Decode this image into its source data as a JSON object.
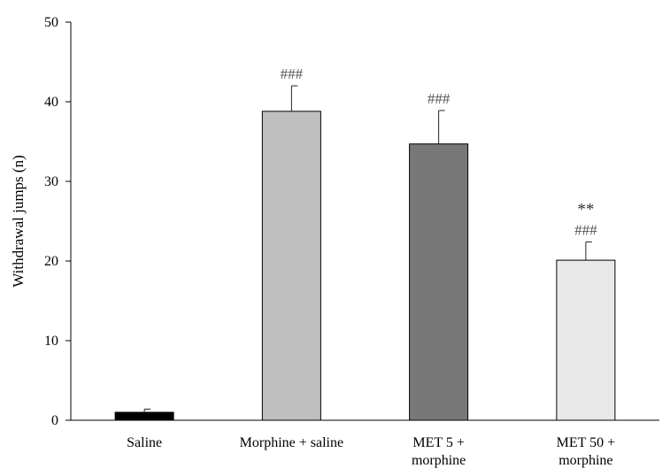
{
  "chart_data": {
    "type": "bar",
    "ylabel": "Withdrawal jumps (n)",
    "xlabel": "",
    "ylim": [
      0,
      50
    ],
    "yticks": [
      0,
      10,
      20,
      30,
      40,
      50
    ],
    "grid": false,
    "categories": [
      [
        "Saline"
      ],
      [
        "Morphine + saline"
      ],
      [
        "MET 5 +",
        "morphine"
      ],
      [
        "MET 50 +",
        "morphine"
      ]
    ],
    "values": [
      1.0,
      38.8,
      34.7,
      20.1
    ],
    "errors": [
      0.4,
      3.2,
      4.2,
      2.3
    ],
    "bar_colors": [
      "#000000",
      "#bfbfbf",
      "#787878",
      "#e8e8e8"
    ],
    "annotations": [
      [],
      [
        "###"
      ],
      [
        "###"
      ],
      [
        "**",
        "###"
      ]
    ]
  }
}
